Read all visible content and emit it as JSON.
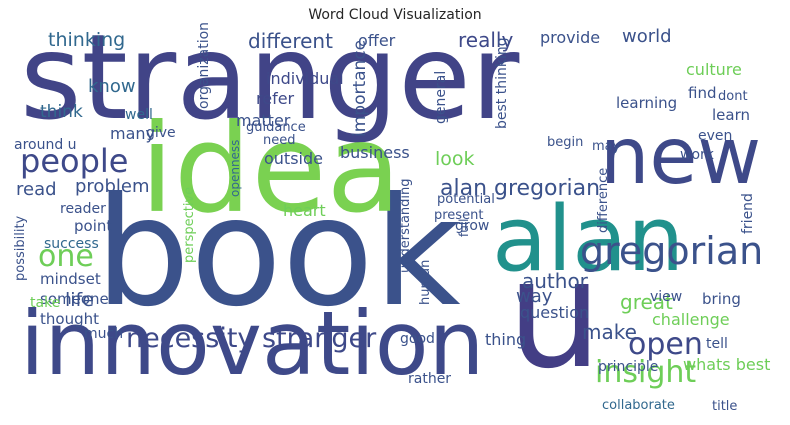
{
  "chart_data": {
    "type": "word_cloud",
    "title": "Word Cloud Visualization",
    "colormap": "viridis",
    "background": "#ffffff",
    "words": [
      {
        "text": "stranger",
        "weight": 100
      },
      {
        "text": "book",
        "weight": 98
      },
      {
        "text": "idea",
        "weight": 72
      },
      {
        "text": "innovation",
        "weight": 64
      },
      {
        "text": "alan",
        "weight": 55
      },
      {
        "text": "u",
        "weight": 52
      },
      {
        "text": "new",
        "weight": 48
      },
      {
        "text": "gregorian",
        "weight": 30
      },
      {
        "text": "people",
        "weight": 25
      },
      {
        "text": "one",
        "weight": 24
      },
      {
        "text": "open",
        "weight": 22
      },
      {
        "text": "insight",
        "weight": 22
      },
      {
        "text": "necessity stranger",
        "weight": 21
      },
      {
        "text": "alan gregorian",
        "weight": 14
      },
      {
        "text": "different",
        "weight": 14
      },
      {
        "text": "thinking",
        "weight": 14
      },
      {
        "text": "really",
        "weight": 15
      },
      {
        "text": "great",
        "weight": 15
      },
      {
        "text": "make",
        "weight": 15
      },
      {
        "text": "author",
        "weight": 14
      },
      {
        "text": "read",
        "weight": 14
      },
      {
        "text": "problem",
        "weight": 14
      },
      {
        "text": "look",
        "weight": 14
      },
      {
        "text": "know",
        "weight": 13
      },
      {
        "text": "think",
        "weight": 13
      },
      {
        "text": "life",
        "weight": 13
      },
      {
        "text": "way",
        "weight": 13
      },
      {
        "text": "offer",
        "weight": 12
      },
      {
        "text": "provide",
        "weight": 12
      },
      {
        "text": "world",
        "weight": 13
      },
      {
        "text": "culture",
        "weight": 11
      },
      {
        "text": "individual",
        "weight": 12
      },
      {
        "text": "refer",
        "weight": 12
      },
      {
        "text": "matter",
        "weight": 12
      },
      {
        "text": "business",
        "weight": 12
      },
      {
        "text": "many",
        "weight": 12
      },
      {
        "text": "well",
        "weight": 11
      },
      {
        "text": "give",
        "weight": 10
      },
      {
        "text": "outside",
        "weight": 12
      },
      {
        "text": "heart",
        "weight": 12
      },
      {
        "text": "point",
        "weight": 12
      },
      {
        "text": "mindset",
        "weight": 12
      },
      {
        "text": "someone",
        "weight": 12
      },
      {
        "text": "thought",
        "weight": 12
      },
      {
        "text": "success",
        "weight": 11
      },
      {
        "text": "reader",
        "weight": 11
      },
      {
        "text": "take",
        "weight": 11
      },
      {
        "text": "much",
        "weight": 11
      },
      {
        "text": "question",
        "weight": 12
      },
      {
        "text": "thing",
        "weight": 12
      },
      {
        "text": "good",
        "weight": 11
      },
      {
        "text": "rather",
        "weight": 11
      },
      {
        "text": "whats best",
        "weight": 12
      },
      {
        "text": "challenge",
        "weight": 12
      },
      {
        "text": "bring",
        "weight": 11
      },
      {
        "text": "view",
        "weight": 11
      },
      {
        "text": "tell",
        "weight": 11
      },
      {
        "text": "principle",
        "weight": 11
      },
      {
        "text": "collaborate",
        "weight": 10
      },
      {
        "text": "title",
        "weight": 9
      },
      {
        "text": "learning",
        "weight": 11
      },
      {
        "text": "learn",
        "weight": 11
      },
      {
        "text": "find",
        "weight": 11
      },
      {
        "text": "dont",
        "weight": 10
      },
      {
        "text": "even",
        "weight": 11
      },
      {
        "text": "work",
        "weight": 11
      },
      {
        "text": "may",
        "weight": 11
      },
      {
        "text": "begin",
        "weight": 10
      },
      {
        "text": "guidance",
        "weight": 10
      },
      {
        "text": "need",
        "weight": 10
      },
      {
        "text": "around u",
        "weight": 11
      },
      {
        "text": "potential",
        "weight": 10
      },
      {
        "text": "present",
        "weight": 10
      },
      {
        "text": "grow",
        "weight": 11
      },
      {
        "text": "understanding",
        "weight": 11
      },
      {
        "text": "human",
        "weight": 10
      },
      {
        "text": "importance",
        "weight": 12
      },
      {
        "text": "organization",
        "weight": 10
      },
      {
        "text": "general",
        "weight": 11
      },
      {
        "text": "best thinking",
        "weight": 11
      },
      {
        "text": "difference",
        "weight": 11
      },
      {
        "text": "friend",
        "weight": 11
      },
      {
        "text": "possibility",
        "weight": 11
      },
      {
        "text": "perspective",
        "weight": 10
      },
      {
        "text": "openness",
        "weight": 9
      },
      {
        "text": "full",
        "weight": 9
      }
    ]
  }
}
